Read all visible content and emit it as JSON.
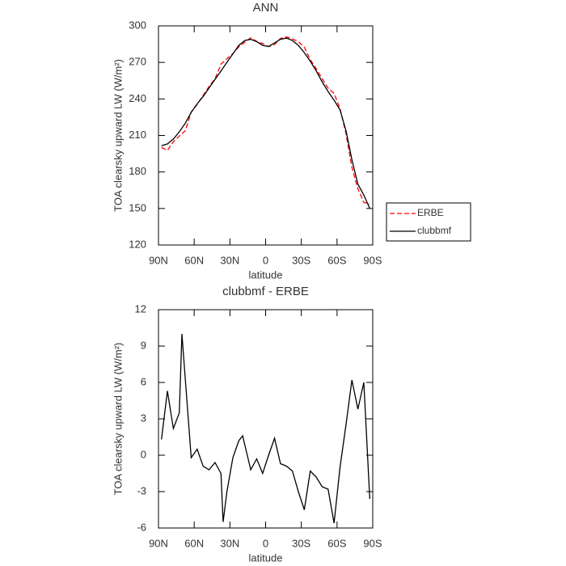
{
  "chart_data": [
    {
      "type": "line",
      "title": "ANN",
      "xlabel": "latitude",
      "ylabel": "TOA clearsky upward LW (W/m²)",
      "x": [
        87.5,
        82.5,
        77.5,
        72.5,
        67.5,
        62.5,
        57.5,
        52.5,
        47.5,
        42.5,
        37.5,
        32.5,
        27.5,
        22.5,
        17.5,
        12.5,
        7.5,
        2.5,
        -2.5,
        -7.5,
        -12.5,
        -17.5,
        -22.5,
        -27.5,
        -32.5,
        -37.5,
        -42.5,
        -47.5,
        -52.5,
        -57.5,
        -62.5,
        -67.5,
        -72.5,
        -77.5,
        -82.5,
        -87.5
      ],
      "series": [
        {
          "name": "ERBE",
          "color": "#ff0000",
          "dashed": true,
          "values": [
            200.2,
            197.7,
            204.8,
            209.5,
            213.7,
            229.2,
            235.5,
            242.9,
            250.2,
            256.6,
            268.5,
            273,
            277.2,
            282.8,
            286.5,
            290.2,
            287.3,
            285.5,
            283,
            284.6,
            289.7,
            290.9,
            289.3,
            287,
            282.5,
            272.3,
            264.8,
            256.6,
            248.8,
            244.6,
            232,
            211.5,
            183.8,
            166.2,
            155,
            153.6
          ]
        },
        {
          "name": "clubbmf",
          "color": "#000000",
          "dashed": false,
          "values": [
            201.5,
            203,
            207,
            213,
            220,
            229,
            236,
            242,
            249,
            256,
            263,
            270,
            277,
            284,
            288,
            289,
            287,
            284,
            283,
            286,
            289,
            290,
            288,
            284,
            278,
            271,
            263,
            254,
            246,
            239,
            231,
            214,
            190,
            170,
            161,
            150
          ]
        }
      ],
      "xlim": [
        90,
        -90
      ],
      "xticks": [
        {
          "value": 90,
          "label": "90N"
        },
        {
          "value": 60,
          "label": "60N"
        },
        {
          "value": 30,
          "label": "30N"
        },
        0,
        {
          "value": -30,
          "label": "30S"
        },
        {
          "value": -60,
          "label": "60S"
        },
        {
          "value": -90,
          "label": "90S"
        }
      ],
      "ylim": [
        120,
        300
      ],
      "yticks": [
        120,
        150,
        180,
        210,
        240,
        270,
        300
      ],
      "legend": "right"
    },
    {
      "type": "line",
      "title": "clubbmf - ERBE",
      "xlabel": "latitude",
      "ylabel": "TOA clearsky upward LW (W/m²)",
      "x": [
        87.5,
        82.5,
        77.5,
        72.5,
        70.3,
        67.5,
        62.5,
        57.5,
        52.5,
        47.5,
        42.5,
        37.5,
        35.7,
        32.5,
        27.5,
        22.5,
        19.3,
        12.5,
        7.5,
        2.5,
        -2.5,
        -7.5,
        -12.5,
        -17.5,
        -22.5,
        -27.5,
        -32.5,
        -37.5,
        -42.5,
        -47.5,
        -52.5,
        -57.5,
        -62.5,
        -67.5,
        -72.5,
        -77.5,
        -82.5,
        -87.5
      ],
      "series": [
        {
          "name": "clubbmf - ERBE",
          "color": "#000000",
          "dashed": false,
          "values": [
            1.3,
            5.3,
            2.2,
            3.5,
            10,
            6.3,
            -0.2,
            0.5,
            -0.9,
            -1.2,
            -0.6,
            -1.5,
            -5.5,
            -3.0,
            -0.2,
            1.2,
            1.6,
            -1.2,
            -0.3,
            -1.5,
            0,
            1.4,
            -0.7,
            -0.9,
            -1.3,
            -3.0,
            -4.5,
            -1.3,
            -1.8,
            -2.6,
            -2.8,
            -5.6,
            -1.0,
            2.5,
            6.2,
            3.8,
            6.0,
            -3.6
          ]
        }
      ],
      "xlim": [
        90,
        -90
      ],
      "xticks": [
        {
          "value": 90,
          "label": "90N"
        },
        {
          "value": 60,
          "label": "60N"
        },
        {
          "value": 30,
          "label": "30N"
        },
        0,
        {
          "value": -30,
          "label": "30S"
        },
        {
          "value": -60,
          "label": "60S"
        },
        {
          "value": -90,
          "label": "90S"
        }
      ],
      "ylim": [
        -6,
        12
      ],
      "yticks": [
        -6,
        -3,
        0,
        3,
        6,
        9,
        12
      ]
    }
  ]
}
